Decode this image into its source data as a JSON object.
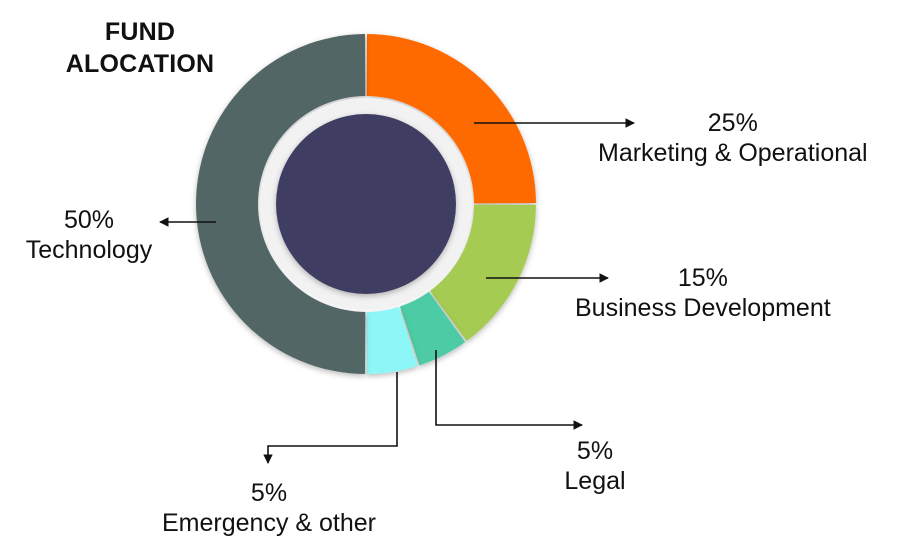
{
  "title": {
    "line1": "FUND",
    "line2": "ALOCATION"
  },
  "chart_data": {
    "type": "pie",
    "title": "FUND ALOCATION",
    "unit": "%",
    "slices": [
      {
        "label": "Marketing & Operational",
        "value": 25,
        "percent_text": "25%",
        "color": "#ff6a00"
      },
      {
        "label": "Business Development",
        "value": 15,
        "percent_text": "15%",
        "color": "#a6cb52"
      },
      {
        "label": "Legal",
        "value": 5,
        "percent_text": "5%",
        "color": "#4ecba5"
      },
      {
        "label": "Emergency & other",
        "value": 5,
        "percent_text": "5%",
        "color": "#8df7f7"
      },
      {
        "label": "Technology",
        "value": 50,
        "percent_text": "50%",
        "color": "#516665"
      }
    ],
    "center_color": "#3f3c63",
    "inner_ring_color": "#f2f2f2",
    "arrow_color": "#111111"
  }
}
